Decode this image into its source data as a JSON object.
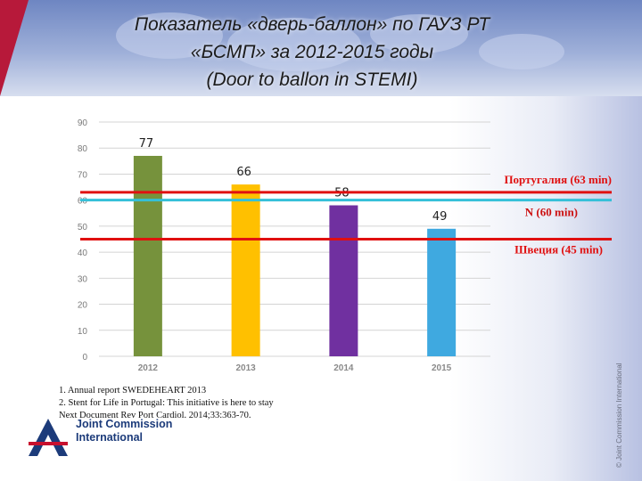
{
  "title": {
    "line1": "Показатель «дверь-баллон» по ГАУЗ РТ",
    "line2": "«БСМП» за 2012-2015 годы",
    "line3": "(Door to ballon in STEMI)"
  },
  "chart_data": {
    "type": "bar",
    "categories": [
      "2012",
      "2013",
      "2014",
      "2015"
    ],
    "values": [
      77,
      66,
      58,
      49
    ],
    "data_labels": [
      "77",
      "66",
      "58",
      "49"
    ],
    "bar_colors": [
      "#76923c",
      "#ffc000",
      "#7030a0",
      "#3fa9e0"
    ],
    "ylim": [
      0,
      90
    ],
    "yticks": [
      "0",
      "10",
      "20",
      "30",
      "40",
      "50",
      "60",
      "70",
      "80",
      "90"
    ],
    "grid": true,
    "reference_lines": [
      {
        "label": "Португалия (63 min)",
        "value": 63,
        "color": "#e01010"
      },
      {
        "label": "N (60 min)",
        "value": 60,
        "color": "#35c0d8"
      },
      {
        "label": "Швеция   (45 min)",
        "value": 45,
        "color": "#e01010"
      }
    ]
  },
  "references": [
    "1. Annual report SWEDEHEART 2013",
    "2. Stent for Life in Portugal: This initiative is here to stay",
    "Next Document Rev Port Cardiol. 2014;33:363-70."
  ],
  "logo": {
    "line1": "Joint Commission",
    "line2": "International"
  },
  "watermark": "© Joint Commission International"
}
